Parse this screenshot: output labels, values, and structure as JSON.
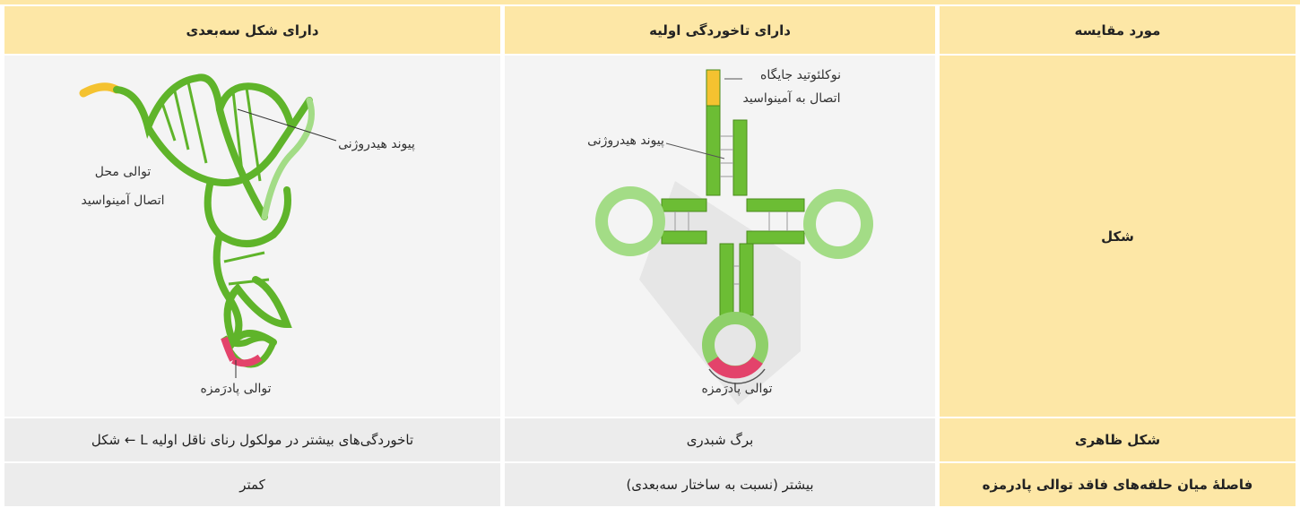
{
  "table": {
    "header": [
      "مورد مقایسه",
      "دارای تاخوردگی اولیه",
      "دارای شکل سه‌بعدی"
    ],
    "rows": [
      [
        "شکل"
      ],
      [
        "شکل ظاهری",
        "برگ شبدری",
        "تاخوردگی‌های بیشتر در مولکول رنای ناقل اولیه L ← شکل"
      ],
      [
        "فاصلهٔ میان حلقه‌های فاقد توالی پادرمزه",
        "بیشتر (نسبت به ساختار سه‌بعدی)",
        "کمتر"
      ]
    ]
  },
  "figures": {
    "cloverleaf": {
      "labels": [
        "نوکلئوتید جایگاه",
        "اتصال به آمینواسید",
        "پیوند هیدروژنی",
        "توالی پادرَمزه"
      ]
    },
    "three_d": {
      "labels": [
        "پیوند هیدروژنی",
        "توالی محل",
        "اتصال آمینواسید",
        "توالی پادرَمزه"
      ]
    }
  }
}
